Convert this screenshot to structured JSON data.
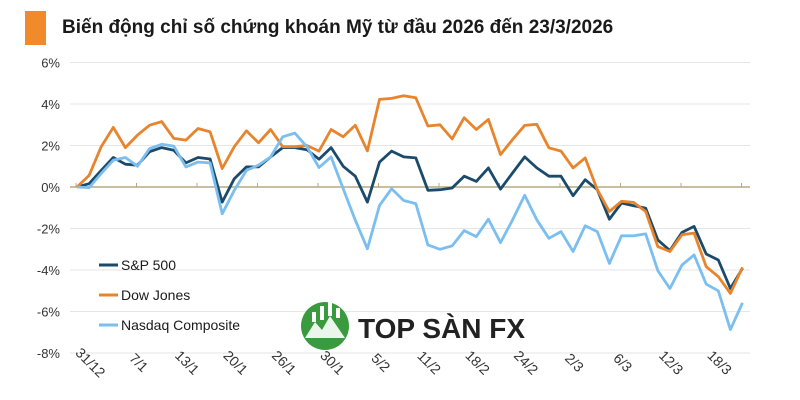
{
  "colors": {
    "accent": "#f08a2a",
    "sp500": "#1b4a6b",
    "dow": "#e8842c",
    "nasdaq": "#7bbef0",
    "zero_line": "#b8a982",
    "grid": "#e6e6e6"
  },
  "watermark": {
    "text": "TOP SÀN FX"
  },
  "chart_data": {
    "type": "line",
    "title": "Biến động chỉ số chứng khoán Mỹ từ đầu 2026 đến 23/3/2026",
    "xlabel": "",
    "ylabel": "",
    "ylim": [
      -8,
      6
    ],
    "yticks": [
      6,
      4,
      2,
      0,
      -2,
      -4,
      -6,
      -8
    ],
    "ytick_labels": [
      "6%",
      "4%",
      "2%",
      "0%",
      "-2%",
      "-4%",
      "-6%",
      "-8%"
    ],
    "xtick_labels": [
      "31/12",
      "7/1",
      "13/1",
      "20/1",
      "26/1",
      "30/1",
      "5/2",
      "11/2",
      "18/2",
      "24/2",
      "2/3",
      "6/3",
      "12/3",
      "18/3"
    ],
    "xtick_every": 4,
    "grid": true,
    "legend_position": "bottom-left",
    "series": [
      {
        "name": "S&P 500",
        "color_key": "sp500",
        "values": [
          0,
          0.16,
          0.8,
          1.42,
          1.1,
          1.05,
          1.7,
          1.9,
          1.77,
          1.16,
          1.42,
          1.35,
          -0.73,
          0.4,
          0.97,
          0.97,
          1.45,
          1.9,
          1.9,
          1.8,
          1.34,
          1.9,
          1.0,
          0.52,
          -0.73,
          1.2,
          1.73,
          1.45,
          1.4,
          -0.16,
          -0.13,
          -0.05,
          0.52,
          0.27,
          0.92,
          -0.1,
          0.68,
          1.45,
          0.92,
          0.52,
          0.52,
          -0.42,
          0.35,
          -0.13,
          -1.55,
          -0.77,
          -0.9,
          -1.02,
          -2.55,
          -3.06,
          -2.19,
          -1.9,
          -3.23,
          -3.52,
          -4.89,
          -3.92
        ]
      },
      {
        "name": "Dow Jones",
        "color_key": "dow",
        "values": [
          0,
          0.56,
          1.94,
          2.87,
          1.9,
          2.5,
          2.98,
          3.15,
          2.34,
          2.26,
          2.82,
          2.66,
          0.89,
          1.94,
          2.71,
          2.13,
          2.77,
          1.94,
          1.94,
          2.0,
          1.73,
          2.77,
          2.42,
          2.98,
          1.74,
          4.22,
          4.27,
          4.4,
          4.3,
          2.94,
          3.0,
          2.32,
          3.34,
          2.77,
          3.26,
          1.56,
          2.29,
          2.97,
          3.02,
          1.89,
          1.73,
          0.92,
          1.4,
          -0.13,
          -1.18,
          -0.69,
          -0.74,
          -1.18,
          -2.87,
          -3.11,
          -2.3,
          -2.22,
          -3.84,
          -4.32,
          -5.13,
          -3.87
        ]
      },
      {
        "name": "Nasdaq Composite",
        "color_key": "nasdaq",
        "values": [
          0,
          -0.03,
          0.65,
          1.29,
          1.42,
          1.0,
          1.85,
          2.06,
          1.97,
          0.97,
          1.2,
          1.16,
          -1.29,
          -0.16,
          0.8,
          1.05,
          1.45,
          2.42,
          2.6,
          1.94,
          0.94,
          1.45,
          -0.08,
          -1.6,
          -2.98,
          -0.89,
          -0.08,
          -0.65,
          -0.8,
          -2.79,
          -3.0,
          -2.84,
          -2.1,
          -2.39,
          -1.55,
          -2.68,
          -1.58,
          -0.4,
          -1.58,
          -2.47,
          -2.15,
          -3.11,
          -1.87,
          -2.15,
          -3.68,
          -2.35,
          -2.35,
          -2.26,
          -4.03,
          -4.89,
          -3.76,
          -3.27,
          -4.68,
          -5.0,
          -6.87,
          -5.58
        ]
      }
    ]
  }
}
